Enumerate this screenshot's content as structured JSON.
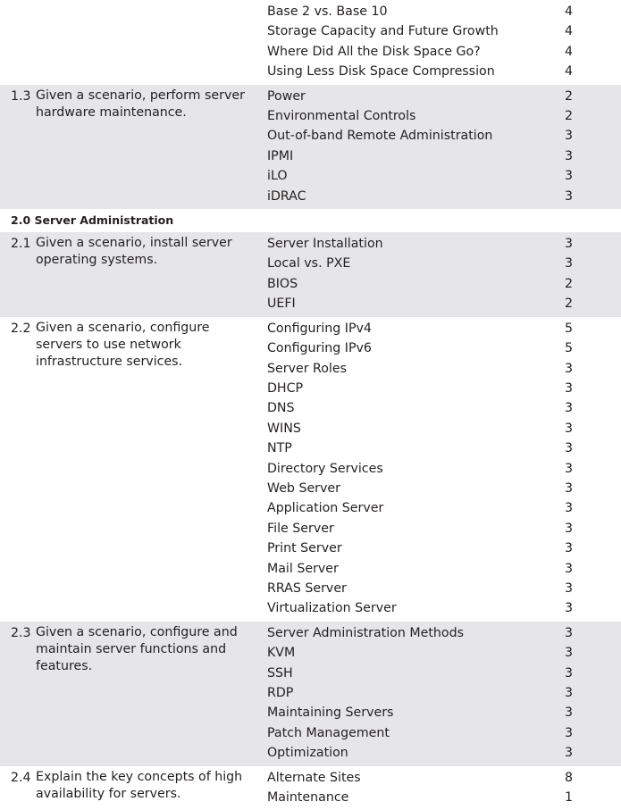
{
  "sections": [
    {
      "type": "row",
      "gray": false,
      "number": "",
      "objective": "",
      "topics": [
        {
          "topic": "Base 2 vs. Base 10",
          "chapter": "4"
        },
        {
          "topic": "Storage Capacity and Future Growth",
          "chapter": "4"
        },
        {
          "topic": "Where Did All the Disk Space Go?",
          "chapter": "4"
        },
        {
          "topic": "Using Less Disk Space Compression",
          "chapter": "4"
        }
      ]
    },
    {
      "type": "row",
      "gray": true,
      "number": "1.3",
      "objective": "Given a scenario, perform server hardware maintenance.",
      "topics": [
        {
          "topic": "Power",
          "chapter": "2"
        },
        {
          "topic": "Environmental Controls",
          "chapter": "2"
        },
        {
          "topic": "Out-of-band Remote Administration",
          "chapter": "3"
        },
        {
          "topic": "IPMI",
          "chapter": "3"
        },
        {
          "topic": "iLO",
          "chapter": "3"
        },
        {
          "topic": "iDRAC",
          "chapter": "3"
        }
      ]
    },
    {
      "type": "heading",
      "text": "2.0  Server Administration"
    },
    {
      "type": "row",
      "gray": true,
      "number": "2.1",
      "objective": "Given a scenario, install server operating systems.",
      "topics": [
        {
          "topic": "Server Installation",
          "chapter": "3"
        },
        {
          "topic": "Local vs. PXE",
          "chapter": "3"
        },
        {
          "topic": "BIOS",
          "chapter": "2"
        },
        {
          "topic": "UEFI",
          "chapter": "2"
        }
      ]
    },
    {
      "type": "row",
      "gray": false,
      "number": "2.2",
      "objective": "Given a scenario, configure servers to use network infrastructure services.",
      "topics": [
        {
          "topic": "Configuring IPv4",
          "chapter": "5"
        },
        {
          "topic": "Configuring IPv6",
          "chapter": "5"
        },
        {
          "topic": "Server Roles",
          "chapter": "3"
        },
        {
          "topic": "DHCP",
          "chapter": "3"
        },
        {
          "topic": "DNS",
          "chapter": "3"
        },
        {
          "topic": "WINS",
          "chapter": "3"
        },
        {
          "topic": "NTP",
          "chapter": "3"
        },
        {
          "topic": "Directory Services",
          "chapter": "3"
        },
        {
          "topic": "Web Server",
          "chapter": "3"
        },
        {
          "topic": "Application Server",
          "chapter": "3"
        },
        {
          "topic": "File Server",
          "chapter": "3"
        },
        {
          "topic": "Print Server",
          "chapter": "3"
        },
        {
          "topic": "Mail Server",
          "chapter": "3"
        },
        {
          "topic": "RRAS Server",
          "chapter": "3"
        },
        {
          "topic": "Virtualization Server",
          "chapter": "3"
        }
      ]
    },
    {
      "type": "row",
      "gray": true,
      "number": "2.3",
      "objective": "Given a scenario, configure and maintain server functions and features.",
      "topics": [
        {
          "topic": "Server Administration Methods",
          "chapter": "3"
        },
        {
          "topic": "KVM",
          "chapter": "3"
        },
        {
          "topic": "SSH",
          "chapter": "3"
        },
        {
          "topic": "RDP",
          "chapter": "3"
        },
        {
          "topic": "Maintaining Servers",
          "chapter": "3"
        },
        {
          "topic": "Patch Management",
          "chapter": "3"
        },
        {
          "topic": "Optimization",
          "chapter": "3"
        }
      ]
    },
    {
      "type": "row",
      "gray": false,
      "number": "2.4",
      "objective": "Explain the key concepts of high availability for servers.",
      "topics": [
        {
          "topic": "Alternate Sites",
          "chapter": "8"
        },
        {
          "topic": "Maintenance",
          "chapter": "1"
        }
      ]
    }
  ]
}
